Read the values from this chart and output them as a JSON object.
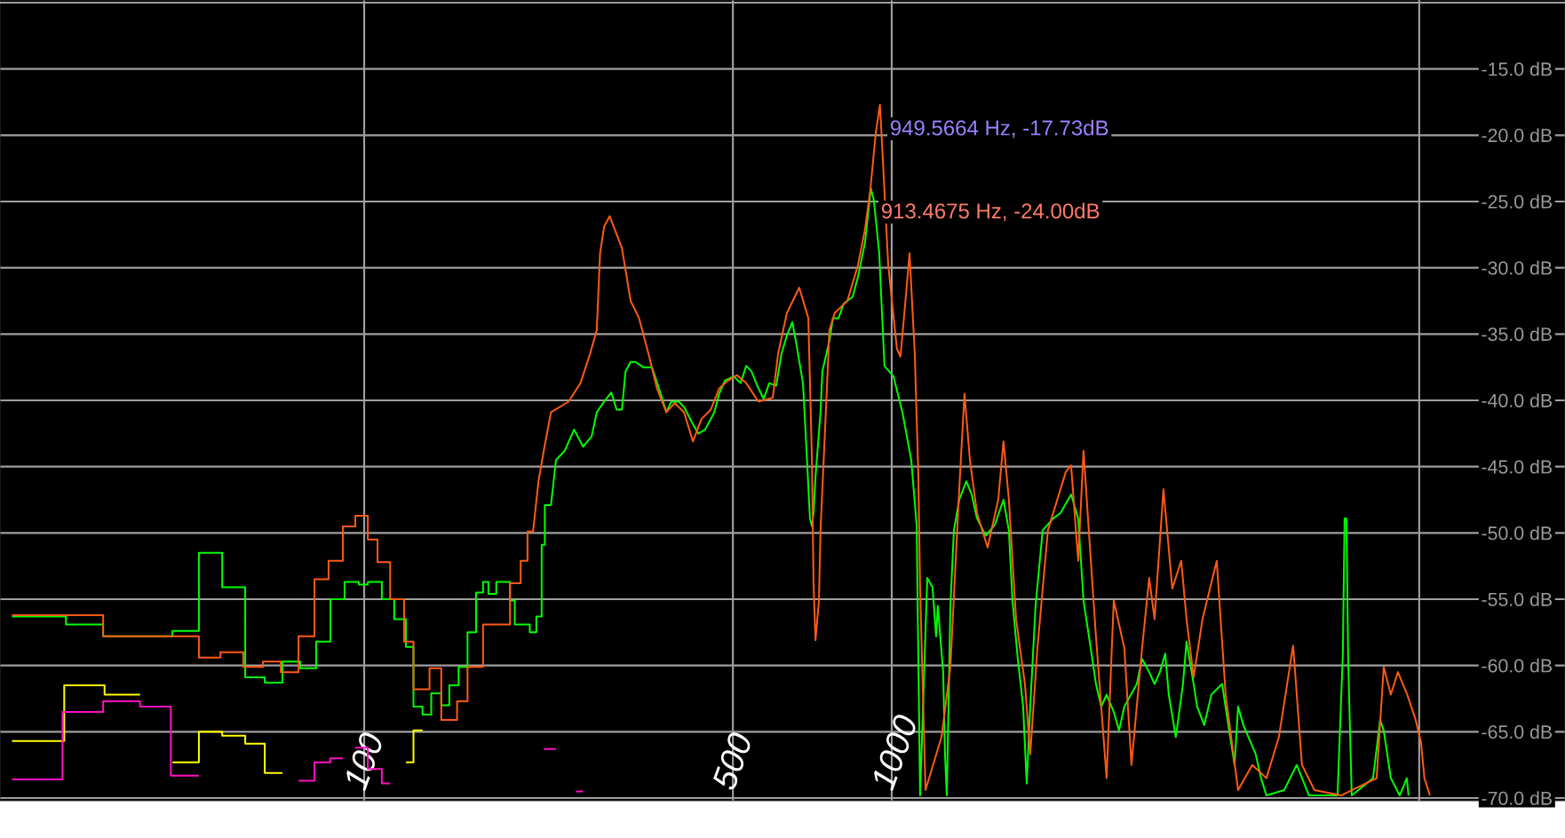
{
  "chart_data": {
    "type": "line",
    "log": "x",
    "grid": true,
    "xlim": [
      20.4,
      18900
    ],
    "ylim": [
      -70.2,
      -9.8
    ],
    "xticks": [
      100,
      500,
      1000,
      {
        "value": 10000,
        "label": null
      }
    ],
    "yticks": [
      {
        "value": -10,
        "label": null
      },
      {
        "value": -15,
        "label": "-15.0 dB"
      },
      {
        "value": -20,
        "label": "-20.0 dB"
      },
      {
        "value": -25,
        "label": "-25.0 dB"
      },
      {
        "value": -30,
        "label": "-30.0 dB"
      },
      {
        "value": -35,
        "label": "-35.0 dB"
      },
      {
        "value": -40,
        "label": "-40.0 dB"
      },
      {
        "value": -45,
        "label": "-45.0 dB"
      },
      {
        "value": -50,
        "label": "-50.0 dB"
      },
      {
        "value": -55,
        "label": "-55.0 dB"
      },
      {
        "value": -60,
        "label": "-60.0 dB"
      },
      {
        "value": -65,
        "label": "-65.0 dB"
      },
      {
        "value": -70,
        "label": "-70.0 dB"
      }
    ],
    "annotations": [
      {
        "text": "949.5664 Hz, -17.73dB",
        "x": 949.5664,
        "y": -17.73
      },
      {
        "text": "913.4675 Hz, -24.00dB",
        "x": 913.4675,
        "y": -24.0
      }
    ],
    "series": [
      {
        "color": "#ffff00",
        "x": [
          21.5,
          27.0,
          27.0,
          32.2,
          32.2,
          37.6
        ],
        "values": [
          -65.7,
          -65.7,
          -61.5,
          -61.5,
          -62.2,
          -62.2
        ]
      },
      {
        "color": "#ffff00",
        "x": [
          43.3,
          48.6,
          48.6,
          53.8,
          53.8,
          59.5,
          59.5,
          64.8,
          64.8,
          70.0
        ],
        "values": [
          -67.3,
          -67.3,
          -65.0,
          -65.0,
          -65.3,
          -65.3,
          -65.9,
          -65.9,
          -68.1,
          -68.1
        ]
      },
      {
        "color": "#ffff00",
        "x": [
          120,
          124,
          124,
          129
        ],
        "values": [
          -67.3,
          -67.3,
          -64.9,
          -64.9
        ]
      },
      {
        "color": "#ff10c0",
        "x": [
          21.5,
          26.8,
          26.8,
          32.0,
          32.0,
          37.6,
          37.6,
          43.0,
          43.0,
          48.6
        ],
        "values": [
          -68.6,
          -68.6,
          -63.5,
          -63.5,
          -62.7,
          -62.7,
          -63.1,
          -63.1,
          -68.3,
          -68.3
        ]
      },
      {
        "color": "#ff10c0",
        "x": [
          75.1,
          80.5,
          80.5,
          86.3,
          86.3,
          91.1
        ],
        "values": [
          -68.7,
          -68.7,
          -67.3,
          -67.3,
          -67.0,
          -67.0
        ]
      },
      {
        "color": "#ff10c0",
        "x": [
          96.2,
          101.6,
          101.6,
          108,
          108,
          112
        ],
        "values": [
          -66.2,
          -66.2,
          -67.8,
          -67.8,
          -68.9,
          -68.9
        ]
      },
      {
        "color": "#ff10c0",
        "x": [
          219,
          231
        ],
        "values": [
          -66.3,
          -66.3
        ]
      },
      {
        "color": "#ff10c0",
        "x": [
          252,
          260
        ],
        "values": [
          -69.5,
          -69.5
        ]
      },
      {
        "color": "#00ff00",
        "x": [
          21.5,
          27.2,
          27.2,
          32.0,
          32.0,
          43.3,
          43.3,
          48.6,
          48.6,
          53.8,
          53.8,
          59.5,
          59.5,
          64.8,
          64.8,
          70.0,
          70.0,
          75.6,
          75.6,
          81.1,
          81.1,
          86.3,
          86.3,
          91.8,
          91.8,
          97.7,
          97.7,
          101.6,
          101.6,
          108,
          108,
          114,
          114,
          120,
          120,
          124,
          124,
          129,
          129,
          134,
          134,
          140,
          140,
          145,
          145,
          151,
          151,
          157,
          157,
          163,
          163,
          168,
          168,
          172,
          172,
          178,
          178,
          189,
          189,
          193,
          193,
          206,
          206,
          212,
          212,
          217,
          217,
          220,
          220,
          226,
          231,
          240,
          250,
          260,
          270,
          276,
          285,
          294,
          301,
          308,
          313,
          320,
          327,
          338,
          351,
          365,
          374,
          382,
          395,
          404,
          420,
          430,
          443,
          461,
          471,
          483,
          502,
          517,
          530,
          542,
          559,
          572,
          586,
          604,
          618,
          633,
          648,
          658,
          679,
          689,
          700,
          706,
          711,
          717,
          733,
          739,
          762,
          774,
          793,
          811,
          843,
          863,
          890,
          913,
          925,
          947,
          969,
          1008,
          1048,
          1089,
          1115,
          1132,
          1168,
          1195,
          1214,
          1223,
          1252,
          1262,
          1272,
          1292,
          1312,
          1343,
          1385,
          1418,
          1451,
          1508,
          1568,
          1629,
          1668,
          1694,
          1734,
          1775,
          1803,
          1831,
          1874,
          1933,
          2025,
          2089,
          2188,
          2257,
          2310,
          2384,
          2439,
          2496,
          2555,
          2636,
          2698,
          2761,
          2915,
          2983,
          3077,
          3150,
          3224,
          3300,
          3352,
          3457,
          3566,
          3622,
          3736,
          3794,
          3913,
          4037,
          4230,
          4363,
          4466,
          4536,
          4642,
          4899,
          5014,
          5133,
          5548,
          5858,
          6183,
          7001,
          7166,
          7222,
          7278,
          7334,
          7449,
          8175,
          8433,
          8566,
          8835,
          9183,
          9472,
          9546
        ],
        "values": [
          -56.3,
          -56.3,
          -56.9,
          -56.9,
          -57.8,
          -57.8,
          -57.4,
          -57.4,
          -51.5,
          -51.5,
          -54.1,
          -54.1,
          -60.9,
          -60.9,
          -61.3,
          -61.3,
          -59.7,
          -59.7,
          -60.2,
          -60.2,
          -58.2,
          -58.2,
          -55.0,
          -55.0,
          -53.7,
          -53.7,
          -53.9,
          -53.9,
          -53.7,
          -53.7,
          -55.0,
          -55.0,
          -56.5,
          -56.5,
          -58.6,
          -58.6,
          -63.1,
          -63.1,
          -63.7,
          -63.7,
          -62.1,
          -62.1,
          -63.0,
          -63.0,
          -61.5,
          -61.5,
          -60.1,
          -60.1,
          -57.5,
          -57.5,
          -54.5,
          -54.5,
          -53.7,
          -53.7,
          -54.6,
          -54.6,
          -53.7,
          -53.7,
          -55.1,
          -55.1,
          -56.9,
          -56.9,
          -57.5,
          -57.5,
          -56.3,
          -56.3,
          -50.9,
          -50.9,
          -47.9,
          -47.9,
          -44.5,
          -43.8,
          -42.2,
          -43.5,
          -42.7,
          -40.9,
          -40.1,
          -39.4,
          -40.7,
          -40.7,
          -37.8,
          -37.1,
          -37.1,
          -37.5,
          -37.5,
          -39.5,
          -40.9,
          -40.1,
          -40.1,
          -40.5,
          -41.8,
          -42.5,
          -42.2,
          -40.9,
          -39.5,
          -38.5,
          -38.2,
          -38.7,
          -37.4,
          -37.8,
          -39.1,
          -39.9,
          -38.7,
          -38.9,
          -36.5,
          -35.1,
          -34.1,
          -35.5,
          -38.7,
          -43.5,
          -48.9,
          -49.5,
          -48.5,
          -45.8,
          -40.9,
          -37.8,
          -35.5,
          -33.8,
          -33.8,
          -32.7,
          -32.2,
          -30.7,
          -28.1,
          -24.0,
          -24.9,
          -28.9,
          -37.4,
          -38.2,
          -40.9,
          -44.5,
          -49.4,
          -69.8,
          -53.4,
          -54.1,
          -57.8,
          -55.5,
          -60.5,
          -66.7,
          -69.8,
          -55.5,
          -49.8,
          -47.5,
          -46.1,
          -47.1,
          -48.9,
          -50.2,
          -49.4,
          -47.5,
          -49.8,
          -55.1,
          -59.5,
          -63.1,
          -68.9,
          -63.1,
          -55.5,
          -49.8,
          -48.9,
          -48.5,
          -47.1,
          -48.9,
          -55.1,
          -58.7,
          -61.4,
          -63.1,
          -62.2,
          -63.5,
          -64.9,
          -63.1,
          -61.4,
          -59.5,
          -60.5,
          -61.4,
          -60.5,
          -59.1,
          -62.2,
          -65.4,
          -61.4,
          -58.2,
          -61.4,
          -63.1,
          -64.5,
          -62.2,
          -61.4,
          -64.9,
          -67.5,
          -63.1,
          -64.5,
          -66.7,
          -68.5,
          -69.8,
          -69.4,
          -67.5,
          -69.8,
          -69.8,
          -59.1,
          -48.9,
          -48.9,
          -59.5,
          -69.8,
          -68.5,
          -64.1,
          -64.9,
          -68.5,
          -69.8,
          -68.5,
          -69.8
        ]
      },
      {
        "color": "#ff5a14",
        "x": [
          21.5,
          32.0,
          32.0,
          48.6,
          48.6,
          53.4,
          53.4,
          59.0,
          59.0,
          64.3,
          64.3,
          69.5,
          69.5,
          75.1,
          75.1,
          80.5,
          80.5,
          85.6,
          85.6,
          91.1,
          91.1,
          96.2,
          96.2,
          101.6,
          101.6,
          106,
          106,
          112,
          112,
          119,
          119,
          124,
          124,
          133,
          133,
          140,
          140,
          150,
          150,
          157,
          157,
          168,
          168,
          189,
          189,
          198,
          198,
          204,
          204,
          209,
          214,
          219,
          226,
          244,
          257,
          268,
          276,
          280,
          285,
          292,
          308,
          320,
          332,
          346,
          359,
          374,
          388,
          404,
          420,
          436,
          454,
          471,
          490,
          509,
          530,
          559,
          595,
          609,
          633,
          668,
          695,
          706,
          711,
          717,
          728,
          733,
          751,
          762,
          780,
          824,
          863,
          890,
          911,
          933,
          950,
          962,
          985,
          1023,
          1039,
          1064,
          1081,
          1106,
          1123,
          1132,
          1159,
          1243,
          1292,
          1343,
          1374,
          1407,
          1451,
          1520,
          1592,
          1629,
          1668,
          1721,
          1789,
          1831,
          1889,
          1978,
          2138,
          2188,
          2257,
          2310,
          2364,
          2439,
          2555,
          2636,
          2761,
          2848,
          2983,
          3077,
          3150,
          3275,
          3404,
          3539,
          3622,
          3736,
          3883,
          4132,
          4296,
          4536,
          4826,
          5133,
          5420,
          5768,
          5995,
          6329,
          7111,
          8304,
          8566,
          8835,
          9111,
          9472,
          9847,
          10080,
          10230,
          10480
        ],
        "values": [
          -56.2,
          -56.2,
          -57.8,
          -57.8,
          -59.4,
          -59.4,
          -59.0,
          -59.0,
          -60.1,
          -60.1,
          -59.7,
          -59.7,
          -60.5,
          -60.5,
          -57.8,
          -57.8,
          -53.5,
          -53.5,
          -52.1,
          -52.1,
          -49.5,
          -49.5,
          -48.7,
          -48.7,
          -50.5,
          -50.5,
          -52.2,
          -52.2,
          -55.0,
          -55.0,
          -58.2,
          -58.2,
          -61.8,
          -61.8,
          -60.2,
          -60.2,
          -64.1,
          -64.1,
          -62.7,
          -62.7,
          -60.1,
          -60.1,
          -56.9,
          -56.9,
          -53.8,
          -53.8,
          -52.1,
          -52.1,
          -49.9,
          -49.9,
          -46.1,
          -43.8,
          -40.9,
          -40.1,
          -38.7,
          -36.5,
          -34.7,
          -28.9,
          -26.9,
          -26.1,
          -28.5,
          -32.5,
          -33.8,
          -36.5,
          -39.1,
          -40.9,
          -40.2,
          -40.9,
          -43.1,
          -41.4,
          -40.7,
          -39.1,
          -38.5,
          -38.1,
          -38.7,
          -40.1,
          -39.8,
          -36.5,
          -33.4,
          -31.5,
          -33.8,
          -44.5,
          -53.8,
          -58.1,
          -55.1,
          -49.8,
          -40.5,
          -34.7,
          -33.4,
          -32.5,
          -29.8,
          -27.1,
          -24.1,
          -19.8,
          -17.7,
          -21.8,
          -29.8,
          -36.1,
          -36.7,
          -32.1,
          -28.9,
          -36.5,
          -45.4,
          -54.2,
          -69.4,
          -65.4,
          -60.1,
          -46.7,
          -39.5,
          -44.5,
          -48.5,
          -51.1,
          -47.5,
          -43.1,
          -47.5,
          -56.5,
          -61.4,
          -66.7,
          -58.7,
          -49.8,
          -45.4,
          -44.9,
          -52.1,
          -43.8,
          -49.8,
          -57.8,
          -68.5,
          -55.1,
          -58.7,
          -67.5,
          -58.7,
          -53.4,
          -56.5,
          -46.7,
          -54.2,
          -52.1,
          -56.5,
          -60.9,
          -56.5,
          -52.1,
          -62.2,
          -69.4,
          -67.5,
          -68.5,
          -65.4,
          -58.5,
          -67.5,
          -69.4,
          -69.8,
          -68.5,
          -60.1,
          -62.2,
          -60.5,
          -62.1,
          -64.1,
          -65.8,
          -68.5,
          -69.8
        ]
      }
    ]
  }
}
